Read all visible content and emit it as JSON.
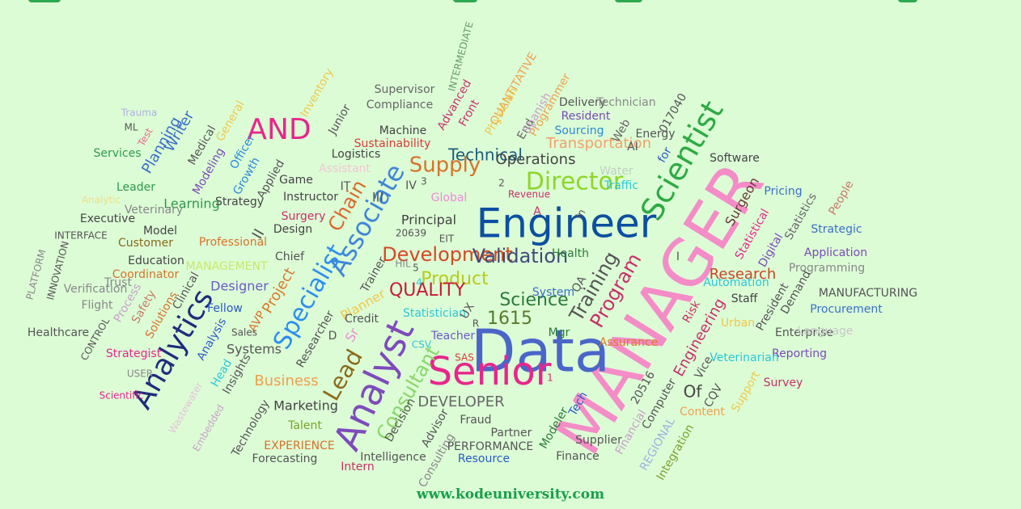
{
  "footer": "www.kodeuniversity.com",
  "colors": {
    "background": "#dcfcd6",
    "footer": "#17a04a"
  },
  "words": [
    "MANAGER",
    "Data",
    "Engineer",
    "Senior",
    "Analyst",
    "Scientist",
    "Analytics",
    "Associate",
    "Specialist",
    "AND",
    "Director",
    "Development",
    "Validation",
    "Lead",
    "Program",
    "Training",
    "Product",
    "Science",
    "1615",
    "Supply",
    "Chain",
    "Technical",
    "QUALITY",
    "Consultant",
    "DEVELOPER",
    "Engineering",
    "Research",
    "Operations",
    "Transportation",
    "Business",
    "Project",
    "Planning",
    "Writer",
    "Designer",
    "Learning",
    "Systems",
    "Marketing",
    "Principal",
    "Surgeon",
    "Planner",
    "Statistician",
    "Teacher",
    "Assurance",
    "Risk",
    "Urban",
    "Reporting",
    "Veterinarian",
    "Survey",
    "Content",
    "Procurement",
    "Enterprise",
    "MANUFACTURING",
    "Programming",
    "Application",
    "Strategic",
    "Pricing",
    "Statistics",
    "People",
    "Digital",
    "Demand",
    "President",
    "Staff",
    "Automation",
    "Statistical",
    "Software",
    "Energy",
    "017040",
    "AI",
    "Web",
    "Sourcing",
    "Resident",
    "Delivery",
    "Technician",
    "Programmer",
    "QUANTITATIVE",
    "Physician",
    "Front",
    "End",
    "Spanish",
    "Advanced",
    "INTERMEDIATE",
    "Supervisor",
    "Compliance",
    "Machine",
    "Sustainability",
    "Logistics",
    "Assistant",
    "Global",
    "Revenue",
    "Traffic",
    "Water",
    "Health",
    "System",
    "Mgr",
    "QA",
    "Strategy",
    "Game",
    "Instructor",
    "Surgery",
    "Design",
    "Applied",
    "Growth",
    "Officer",
    "Medical",
    "Modeling",
    "General",
    "Inventory",
    "Junior",
    "Trauma",
    "ML",
    "Test",
    "Services",
    "Leader",
    "Analytic",
    "Veterinary",
    "Executive",
    "Model",
    "Customer",
    "Education",
    "Coordinator",
    "Professional",
    "MANAGEMENT",
    "Chief",
    "INTERFACE",
    "PLATFORM",
    "INNOVATION",
    "Verification",
    "Flight",
    "Trust",
    "Process",
    "Safety",
    "Solutions",
    "Clinical",
    "Fellow",
    "AVP",
    "Sales",
    "Healthcare",
    "CONTROL",
    "Strategist",
    "USER",
    "Scientific",
    "Wastewater",
    "Embedded",
    "Head",
    "Analysis",
    "Insights",
    "Technology",
    "Talent",
    "EXPERIENCE",
    "Forecasting",
    "Intern",
    "Intelligence",
    "Consulting",
    "Advisor",
    "Decision",
    "Fraud",
    "Partner",
    "PERFORMANCE",
    "Resource",
    "Modeler",
    "Tech",
    "Finance",
    "Supplier",
    "Financial",
    "REGIONAL",
    "Integration",
    "Computer",
    "20516",
    "Of",
    "Vice",
    "CQV",
    "Support",
    "Language",
    "Researcher",
    "Credit",
    "Sr",
    "Trainer",
    "HIL",
    "EIT",
    "20639",
    "SAS",
    "CSV",
    "UX",
    "R",
    "D",
    "II",
    "III",
    "IV",
    "IT",
    "3",
    "2",
    "4",
    "5",
    "A",
    "I",
    "for",
    "In",
    "1"
  ]
}
